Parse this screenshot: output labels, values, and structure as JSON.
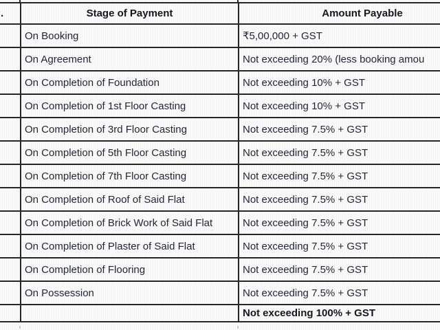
{
  "table": {
    "header": {
      "serial": ".",
      "stage": "Stage of Payment",
      "amount": "Amount Payable"
    },
    "rows": [
      {
        "stage": "On Booking",
        "amount": "₹5,00,000 + GST"
      },
      {
        "stage": "On Agreement",
        "amount": "Not exceeding 20% (less booking amou"
      },
      {
        "stage": "On Completion of Foundation",
        "amount": "Not exceeding 10% + GST"
      },
      {
        "stage": "On Completion of 1st Floor Casting",
        "amount": "Not exceeding 10% + GST"
      },
      {
        "stage": "On Completion of 3rd Floor Casting",
        "amount": "Not exceeding 7.5% + GST"
      },
      {
        "stage": "On Completion of 5th Floor Casting",
        "amount": "Not exceeding 7.5% + GST"
      },
      {
        "stage": "On Completion of 7th Floor Casting",
        "amount": "Not exceeding 7.5% + GST"
      },
      {
        "stage": "On Completion of Roof of Said Flat",
        "amount": "Not exceeding 7.5% + GST"
      },
      {
        "stage": "On Completion of Brick Work of Said Flat",
        "amount": "Not exceeding 7.5% + GST"
      },
      {
        "stage": "On Completion of Plaster of Said Flat",
        "amount": "Not exceeding 7.5% + GST"
      },
      {
        "stage": "On Completion of Flooring",
        "amount": "Not exceeding 7.5% + GST"
      },
      {
        "stage": "On Possession",
        "amount": "Not exceeding 7.5% + GST"
      },
      {
        "stage": "",
        "amount": "Not exceeding 100% + GST"
      }
    ]
  },
  "colors": {
    "border": "#262626",
    "text": "#1f2533",
    "background": "#f7f8f7",
    "ghost_gridline": "#bccfe4"
  }
}
